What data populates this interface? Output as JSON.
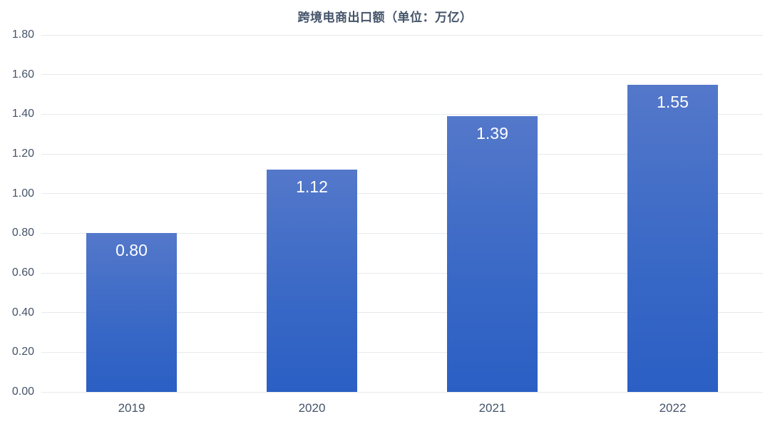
{
  "title": "跨境电商出口额（单位：万亿）",
  "colors": {
    "background": "#FFFFFF",
    "title_text": "#44546A",
    "axis_text": "#44546A",
    "gridline": "#E7E9EC",
    "bar_gradient_top": "#5478CA",
    "bar_gradient_bottom": "#2B5FC4",
    "bar_value_text": "#FFFFFF"
  },
  "chart_data": {
    "type": "bar",
    "title": "跨境电商出口额（单位：万亿）",
    "categories": [
      "2019",
      "2020",
      "2021",
      "2022"
    ],
    "values": [
      0.8,
      1.12,
      1.39,
      1.55
    ],
    "value_labels": [
      "0.80",
      "1.12",
      "1.39",
      "1.55"
    ],
    "xlabel": "",
    "ylabel": "",
    "ylim": [
      0.0,
      1.8
    ],
    "ytick_step": 0.2,
    "ytick_labels": [
      "0.00",
      "0.20",
      "0.40",
      "0.60",
      "0.80",
      "1.00",
      "1.20",
      "1.40",
      "1.60",
      "1.80"
    ],
    "grid": "horizontal",
    "legend": "none",
    "value_label_position": "inside-top",
    "bar_orientation": "vertical"
  }
}
